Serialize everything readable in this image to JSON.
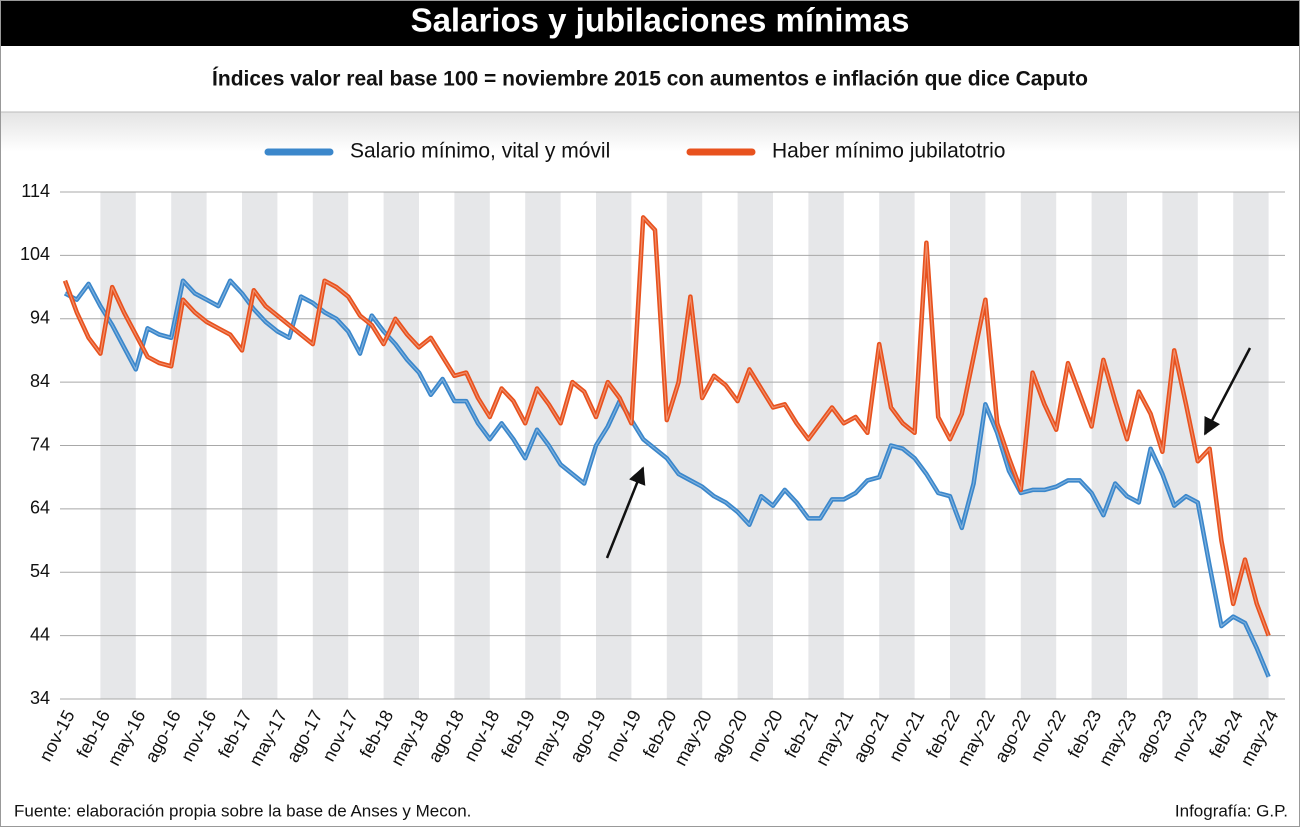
{
  "chart_data": {
    "type": "line",
    "title": "Salarios y jubilaciones mínimas",
    "subtitle": "Índices valor real base 100 = noviembre 2015 con aumentos e inflación que dice Caputo",
    "source": "Fuente: elaboración propia sobre la base de Anses y Mecon.",
    "credit": "Infografía: G.P.",
    "categories": [
      "nov-15",
      null,
      null,
      "feb-16",
      null,
      null,
      "may-16",
      null,
      null,
      "ago-16",
      null,
      null,
      "nov-16",
      null,
      null,
      "feb-17",
      null,
      null,
      "may-17",
      null,
      null,
      "ago-17",
      null,
      null,
      "nov-17",
      null,
      null,
      "feb-18",
      null,
      null,
      "may-18",
      null,
      null,
      "ago-18",
      null,
      null,
      "nov-18",
      null,
      null,
      "feb-19",
      null,
      null,
      "may-19",
      null,
      null,
      "ago-19",
      null,
      null,
      "nov-19",
      null,
      null,
      "feb-20",
      null,
      null,
      "may-20",
      null,
      null,
      "ago-20",
      null,
      null,
      "nov-20",
      null,
      null,
      "feb-21",
      null,
      null,
      "may-21",
      null,
      null,
      "ago-21",
      null,
      null,
      "nov-21",
      null,
      null,
      "feb-22",
      null,
      null,
      "may-22",
      null,
      null,
      "ago-22",
      null,
      null,
      "nov-22",
      null,
      null,
      "feb-23",
      null,
      null,
      "may-23",
      null,
      null,
      "ago-23",
      null,
      null,
      "nov-23",
      null,
      null,
      "feb-24",
      null,
      null,
      "may-24"
    ],
    "series": [
      {
        "name": "Salario mínimo, vital y móvil",
        "color": "#3b87cb",
        "values": [
          98,
          97,
          99.5,
          96,
          93,
          89.5,
          86,
          92.5,
          91.5,
          91,
          100,
          98,
          97,
          96,
          100,
          98,
          95.5,
          93.5,
          92,
          91,
          97.5,
          96.5,
          95,
          94,
          92,
          88.5,
          94.5,
          92,
          90,
          87.5,
          85.5,
          82,
          84.5,
          81,
          81,
          77.5,
          75,
          77.5,
          75,
          72,
          76.5,
          74,
          71,
          69.5,
          68,
          74,
          77,
          81,
          78,
          75,
          73.5,
          72,
          69.5,
          68.5,
          67.5,
          66,
          65,
          63.5,
          61.5,
          66,
          64.5,
          67,
          65,
          62.5,
          62.5,
          65.5,
          65.5,
          66.5,
          68.5,
          69,
          74,
          73.5,
          72,
          69.5,
          66.5,
          66,
          61,
          68,
          80.5,
          76,
          70,
          66.5,
          67,
          67,
          67.5,
          68.5,
          68.5,
          66.5,
          63,
          68,
          66,
          65,
          73.5,
          69.5,
          64.5,
          66,
          65,
          55,
          45.5,
          47,
          46,
          42,
          37.5
        ]
      },
      {
        "name": "Haber mínimo jubilatotrio",
        "color": "#e8521e",
        "values": [
          100,
          95,
          91,
          88.5,
          99,
          95,
          91.5,
          88,
          87,
          86.5,
          97,
          95,
          93.5,
          92.5,
          91.5,
          89,
          98.5,
          96,
          94.5,
          93,
          91.5,
          90,
          100,
          99,
          97.5,
          94.5,
          93,
          90,
          94,
          91.5,
          89.5,
          91,
          88,
          85,
          85.5,
          81.5,
          78.5,
          83,
          81,
          77.5,
          83,
          80.5,
          77.5,
          84,
          82.5,
          78.5,
          84,
          81.5,
          77.5,
          110,
          108,
          78,
          84,
          97.5,
          81.5,
          85,
          83.5,
          81,
          86,
          83,
          80,
          80.5,
          77.5,
          75,
          77.5,
          80,
          77.5,
          78.5,
          76,
          90,
          80,
          77.5,
          76,
          106,
          78.5,
          75,
          79,
          88,
          97,
          77.5,
          72,
          67,
          85.5,
          80.5,
          76.5,
          87,
          82,
          77,
          87.5,
          81,
          75,
          82.5,
          79,
          73,
          89,
          80.5,
          71.5,
          73.5,
          59,
          49,
          56,
          49,
          44
        ]
      }
    ],
    "ylim": [
      34,
      114
    ],
    "yticks": [
      34,
      44,
      54,
      64,
      74,
      84,
      94,
      104,
      114
    ],
    "grid": true
  }
}
